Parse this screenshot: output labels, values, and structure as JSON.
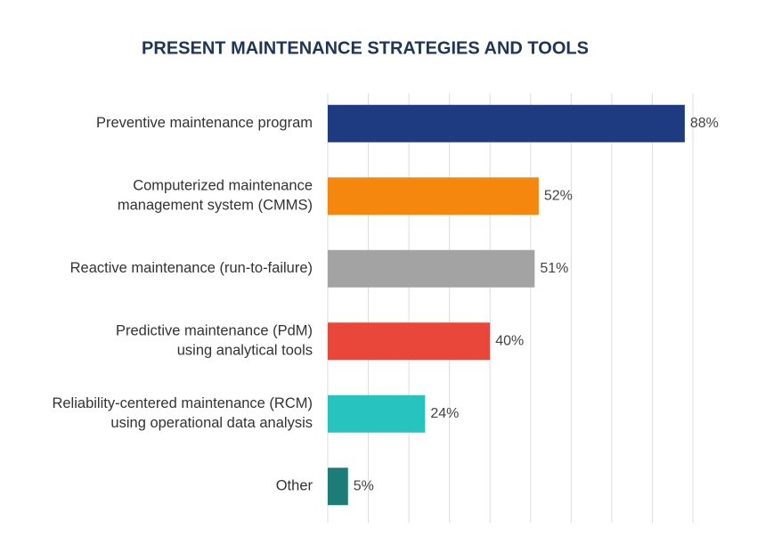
{
  "chart_data": {
    "type": "bar",
    "orientation": "horizontal",
    "title": "PRESENT MAINTENANCE STRATEGIES AND TOOLS",
    "categories": [
      "Preventive maintenance program",
      "Computerized maintenance\nmanagement system (CMMS)",
      "Reactive maintenance (run-to-failure)",
      "Predictive maintenance (PdM)\nusing analytical tools",
      "Reliability-centered maintenance (RCM)\nusing operational data analysis",
      "Other"
    ],
    "values": [
      88,
      52,
      51,
      40,
      24,
      5
    ],
    "value_labels": [
      "88%",
      "52%",
      "51%",
      "40%",
      "24%",
      "5%"
    ],
    "colors": [
      "#1e3a80",
      "#f5870f",
      "#a3a3a3",
      "#e8473a",
      "#27c4bf",
      "#1c7d78"
    ],
    "xlim": [
      0,
      90
    ],
    "xticks": [
      0,
      10,
      20,
      30,
      40,
      50,
      60,
      70,
      80,
      90
    ],
    "grid": true
  }
}
